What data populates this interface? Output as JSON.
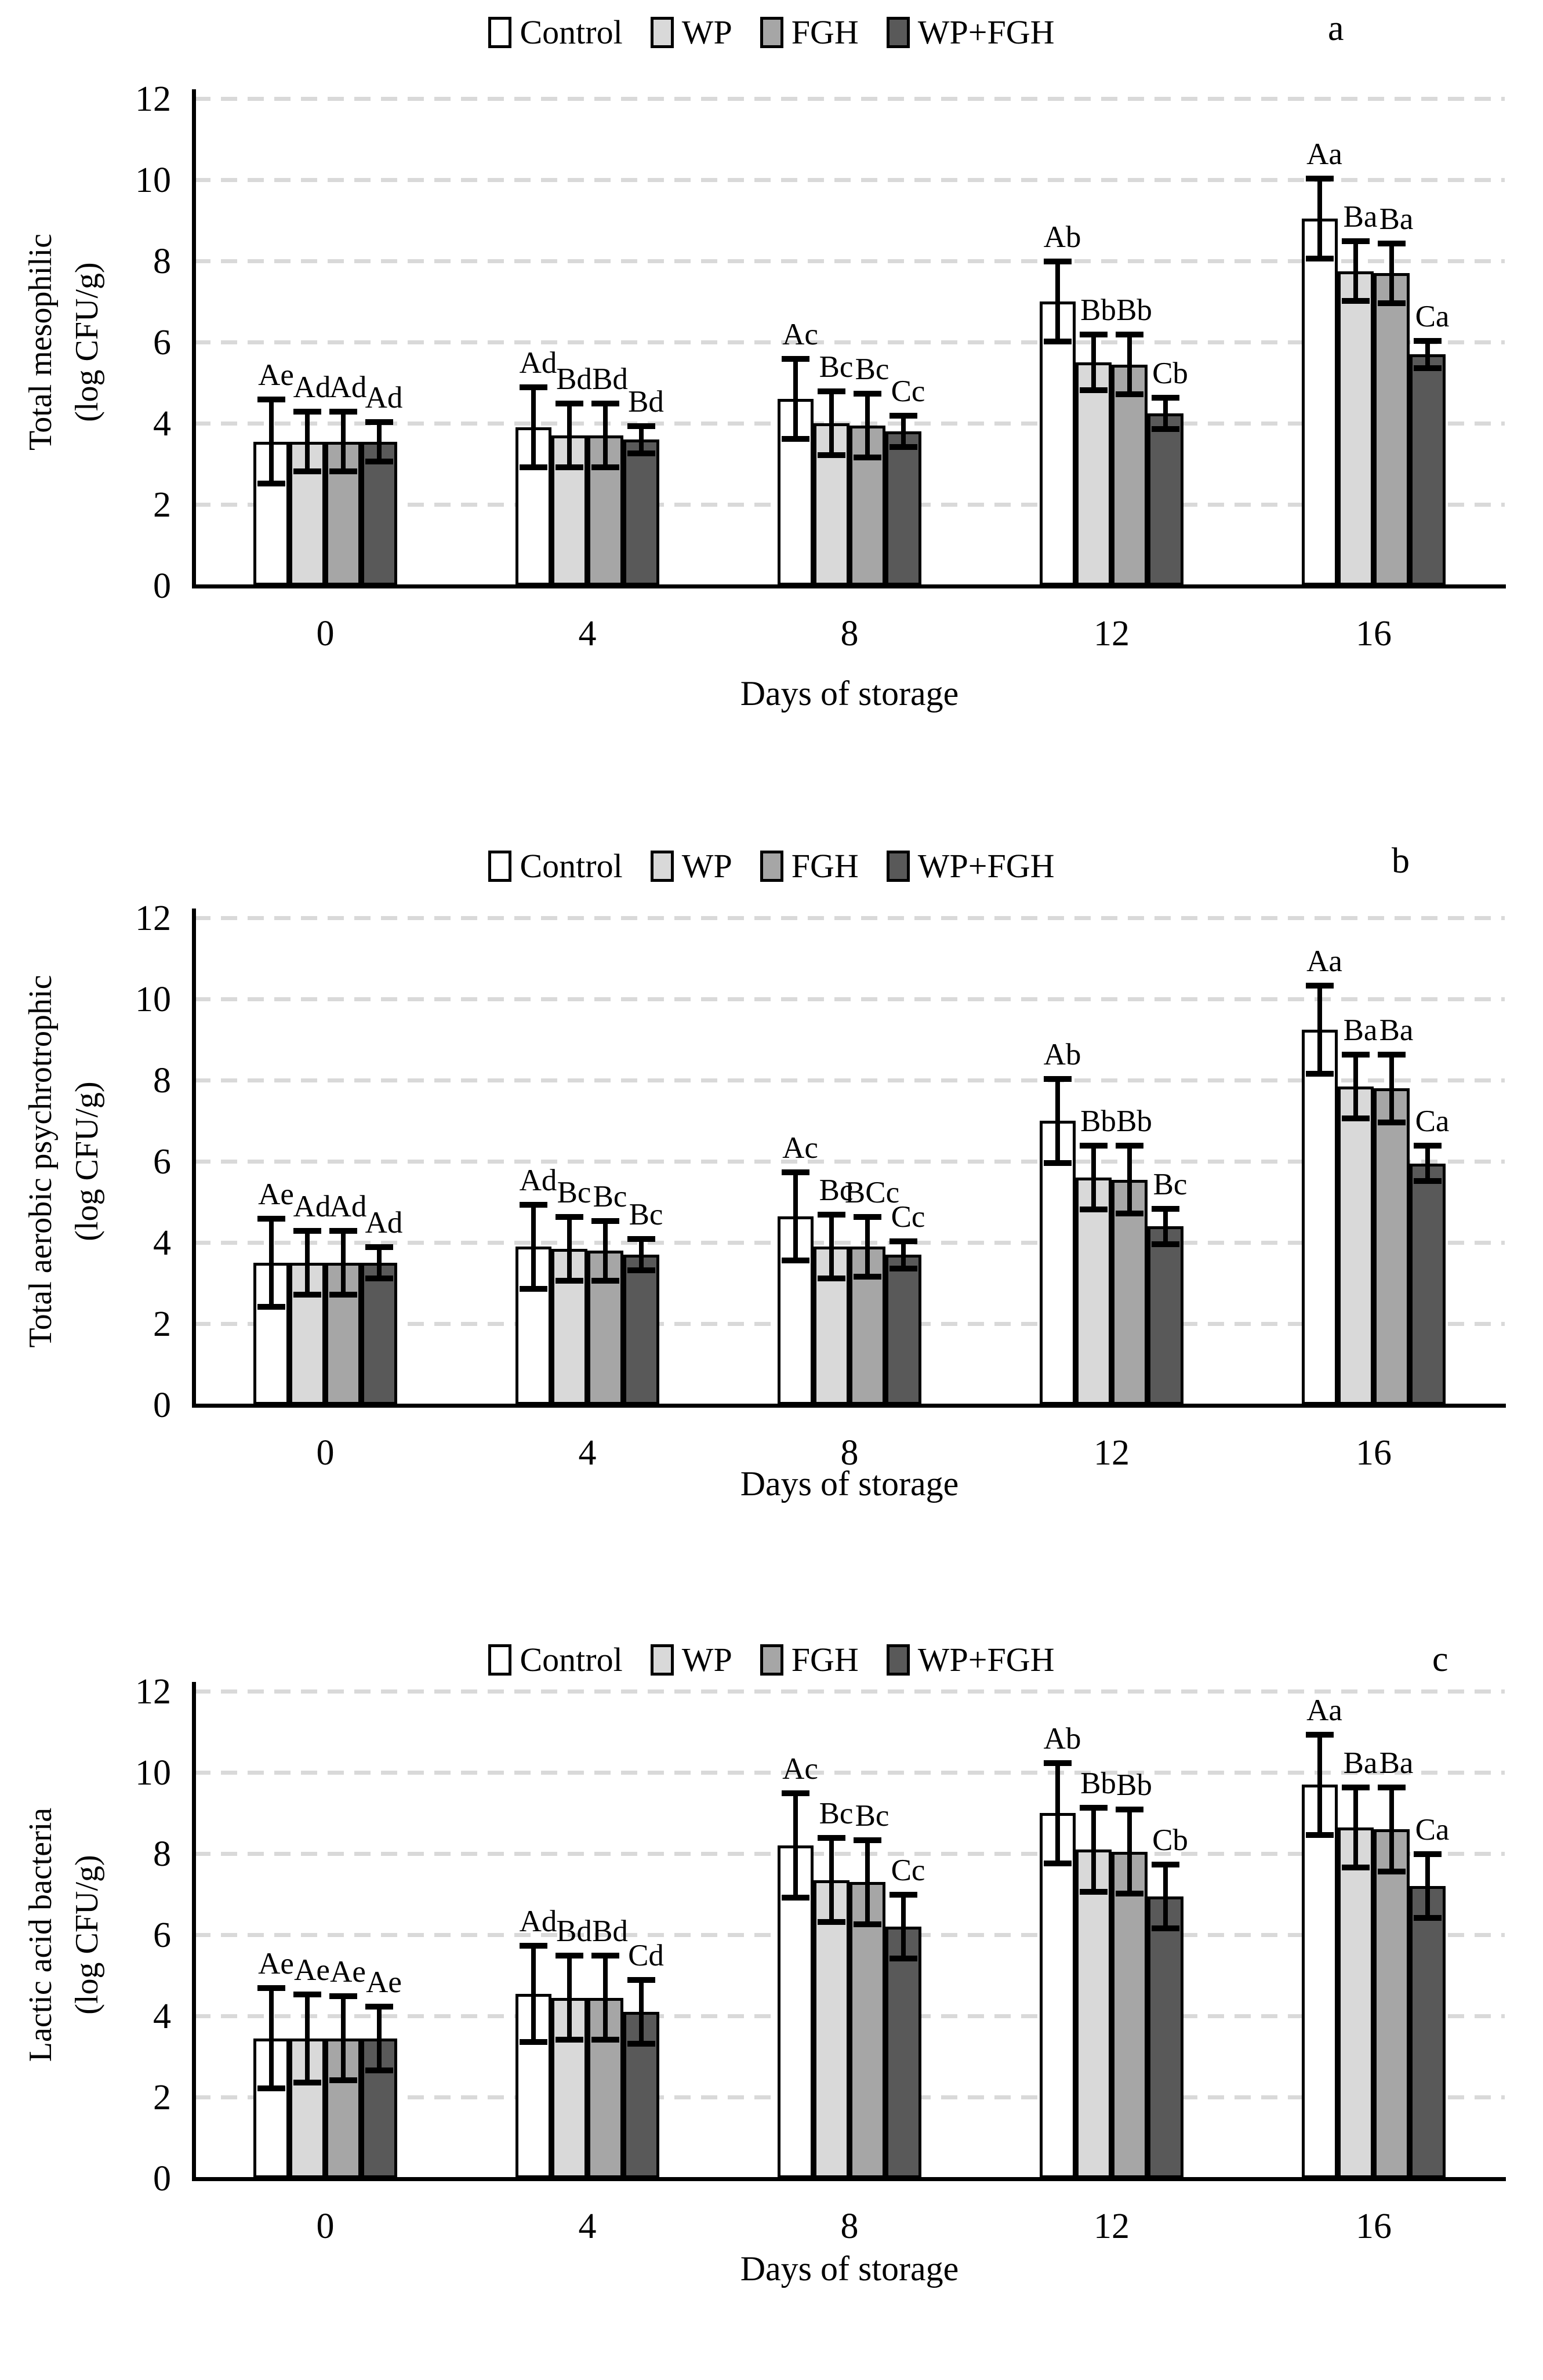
{
  "figure": {
    "x_axis_title": "Days of storage",
    "categories": [
      "0",
      "4",
      "8",
      "12",
      "16"
    ],
    "y_ticks": [
      "0",
      "2",
      "4",
      "6",
      "8",
      "10",
      "12"
    ],
    "legend_labels": [
      "Control",
      "WP",
      "FGH",
      "WP+FGH"
    ],
    "panel_letters": [
      "a",
      "b",
      "c"
    ],
    "colors": {
      "control": "#ffffff",
      "wp": "#d9d9d9",
      "fgh": "#a6a6a6",
      "wp_fgh": "#595959",
      "gridline": "#d9d9d9",
      "axis": "#000000"
    }
  },
  "chart_data": [
    {
      "type": "bar",
      "panel_label": "a",
      "ylabel_line1": "Total mesophilic",
      "ylabel_line2": "(log CFU/g)",
      "xlabel": "Days of storage",
      "categories": [
        "0",
        "4",
        "8",
        "12",
        "16"
      ],
      "ylim": [
        0,
        12
      ],
      "yticks": [
        0,
        2,
        4,
        6,
        8,
        10,
        12
      ],
      "grid": "horizontal-dashed",
      "legend_position": "top-center",
      "series": [
        {
          "name": "Control",
          "color": "#ffffff",
          "values": [
            3.55,
            3.9,
            4.6,
            7.0,
            9.05
          ],
          "errors": [
            1.05,
            1.0,
            1.0,
            1.0,
            1.0
          ],
          "labels": [
            "Ae",
            "Ad",
            "Ac",
            "Ab",
            "Aa"
          ]
        },
        {
          "name": "WP",
          "color": "#d9d9d9",
          "values": [
            3.55,
            3.7,
            4.0,
            5.5,
            7.75
          ],
          "errors": [
            0.75,
            0.8,
            0.8,
            0.7,
            0.75
          ],
          "labels": [
            "Ad",
            "Bd",
            "Bc",
            "Bb",
            "Ba"
          ]
        },
        {
          "name": "FGH",
          "color": "#a6a6a6",
          "values": [
            3.55,
            3.7,
            3.95,
            5.45,
            7.7
          ],
          "errors": [
            0.75,
            0.8,
            0.8,
            0.75,
            0.75
          ],
          "labels": [
            "Ad",
            "Bd",
            "Bc",
            "Bb",
            "Ba"
          ]
        },
        {
          "name": "WP+FGH",
          "color": "#595959",
          "values": [
            3.55,
            3.6,
            3.8,
            4.25,
            5.7
          ],
          "errors": [
            0.5,
            0.35,
            0.4,
            0.4,
            0.35
          ],
          "labels": [
            "Ad",
            "Bd",
            "Cc",
            "Cb",
            "Ca"
          ]
        }
      ]
    },
    {
      "type": "bar",
      "panel_label": "b",
      "ylabel_line1": "Total aerobic psychrotrophic",
      "ylabel_line2": "(log CFU/g)",
      "xlabel": "Days of storage",
      "categories": [
        "0",
        "4",
        "8",
        "12",
        "16"
      ],
      "ylim": [
        0,
        12
      ],
      "yticks": [
        0,
        2,
        4,
        6,
        8,
        10,
        12
      ],
      "grid": "horizontal-dashed",
      "legend_position": "top-center",
      "series": [
        {
          "name": "Control",
          "color": "#ffffff",
          "values": [
            3.5,
            3.9,
            4.65,
            7.0,
            9.25
          ],
          "errors": [
            1.1,
            1.05,
            1.1,
            1.05,
            1.1
          ],
          "labels": [
            "Ae",
            "Ad",
            "Ac",
            "Ab",
            "Aa"
          ]
        },
        {
          "name": "WP",
          "color": "#d9d9d9",
          "values": [
            3.5,
            3.85,
            3.9,
            5.6,
            7.85
          ],
          "errors": [
            0.8,
            0.8,
            0.8,
            0.8,
            0.8
          ],
          "labels": [
            "Ad",
            "Bc",
            "Bc",
            "Bb",
            "Ba"
          ]
        },
        {
          "name": "FGH",
          "color": "#a6a6a6",
          "values": [
            3.5,
            3.8,
            3.9,
            5.55,
            7.8
          ],
          "errors": [
            0.8,
            0.75,
            0.75,
            0.85,
            0.85
          ],
          "labels": [
            "Ad",
            "Bc",
            "BCc",
            "Bb",
            "Ba"
          ]
        },
        {
          "name": "WP+FGH",
          "color": "#595959",
          "values": [
            3.5,
            3.7,
            3.7,
            4.4,
            5.95
          ],
          "errors": [
            0.4,
            0.4,
            0.35,
            0.45,
            0.45
          ],
          "labels": [
            "Ad",
            "Bc",
            "Cc",
            "Bc",
            "Ca"
          ]
        }
      ]
    },
    {
      "type": "bar",
      "panel_label": "c",
      "ylabel_line1": "Lactic acid bacteria",
      "ylabel_line2": "(log CFU/g)",
      "xlabel": "Days of storage",
      "categories": [
        "0",
        "4",
        "8",
        "12",
        "16"
      ],
      "ylim": [
        0,
        12
      ],
      "yticks": [
        0,
        2,
        4,
        6,
        8,
        10,
        12
      ],
      "grid": "horizontal-dashed",
      "legend_position": "top-center",
      "series": [
        {
          "name": "Control",
          "color": "#ffffff",
          "values": [
            3.45,
            4.55,
            8.2,
            9.0,
            9.7
          ],
          "errors": [
            1.25,
            1.2,
            1.3,
            1.25,
            1.25
          ],
          "labels": [
            "Ae",
            "Ad",
            "Ac",
            "Ab",
            "Aa"
          ]
        },
        {
          "name": "WP",
          "color": "#d9d9d9",
          "values": [
            3.45,
            4.45,
            7.35,
            8.1,
            8.65
          ],
          "errors": [
            1.1,
            1.05,
            1.05,
            1.05,
            1.0
          ],
          "labels": [
            "Ae",
            "Bd",
            "Bc",
            "Bb",
            "Ba"
          ]
        },
        {
          "name": "FGH",
          "color": "#a6a6a6",
          "values": [
            3.45,
            4.45,
            7.3,
            8.05,
            8.6
          ],
          "errors": [
            1.05,
            1.05,
            1.05,
            1.05,
            1.05
          ],
          "labels": [
            "Ae",
            "Bd",
            "Bc",
            "Bb",
            "Ba"
          ]
        },
        {
          "name": "WP+FGH",
          "color": "#595959",
          "values": [
            3.45,
            4.1,
            6.2,
            6.95,
            7.2
          ],
          "errors": [
            0.8,
            0.8,
            0.8,
            0.8,
            0.8
          ],
          "labels": [
            "Ae",
            "Cd",
            "Cc",
            "Cb",
            "Ca"
          ]
        }
      ]
    }
  ]
}
